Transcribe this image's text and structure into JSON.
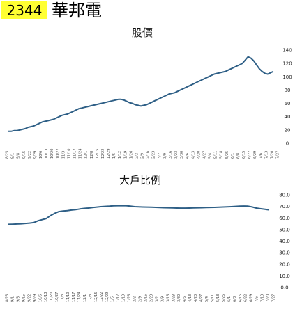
{
  "header": {
    "ticker": "2344",
    "company": "華邦電"
  },
  "chart_data": [
    {
      "type": "line",
      "title": "股價",
      "xlabel": "",
      "ylabel": "",
      "ylim": [
        0,
        140
      ],
      "yticks": [
        "140",
        "120",
        "100",
        "80",
        "60",
        "40",
        "20",
        "0"
      ],
      "yticks_values": [
        140,
        120,
        100,
        80,
        60,
        40,
        20,
        0
      ],
      "y_axis_position": "right",
      "grid": false,
      "color": "#2e5f86",
      "x_labels": [
        "8/25",
        "9/1",
        "9/8",
        "9/15",
        "9/22",
        "9/29",
        "10/6",
        "10/13",
        "10/20",
        "10/27",
        "11/3",
        "11/10",
        "11/17",
        "11/24",
        "12/1",
        "12/8",
        "12/15",
        "12/22",
        "12/29",
        "1/5",
        "1/12",
        "1/19",
        "1/26",
        "2/2",
        "2/9",
        "2/16",
        "2/23",
        "3/2",
        "3/9",
        "3/16",
        "3/23",
        "3/30",
        "4/6",
        "4/13",
        "4/20",
        "4/27",
        "5/4",
        "5/11",
        "5/18",
        "5/25",
        "6/1",
        "6/8",
        "6/15",
        "6/22",
        "6/29",
        "7/6",
        "7/13",
        "7/20",
        "7/27"
      ],
      "values": [
        18,
        18,
        19,
        19,
        20,
        21,
        22,
        24,
        25,
        26,
        28,
        30,
        32,
        33,
        34,
        35,
        36,
        38,
        40,
        42,
        43,
        44,
        46,
        48,
        50,
        52,
        53,
        54,
        55,
        56,
        57,
        58,
        59,
        60,
        61,
        62,
        63,
        64,
        65,
        66,
        66,
        65,
        63,
        61,
        60,
        58,
        57,
        56,
        57,
        58,
        60,
        62,
        64,
        66,
        68,
        70,
        72,
        74,
        75,
        76,
        78,
        80,
        82,
        84,
        86,
        88,
        90,
        92,
        94,
        96,
        98,
        100,
        102,
        104,
        105,
        106,
        107,
        108,
        110,
        112,
        114,
        116,
        118,
        120,
        125,
        130,
        128,
        124,
        118,
        112,
        108,
        105,
        104,
        106,
        108
      ]
    },
    {
      "type": "line",
      "title": "大戶比例",
      "xlabel": "",
      "ylabel": "",
      "ylim": [
        0,
        80
      ],
      "yticks": [
        "80.0",
        "70.0",
        "60.0",
        "50.0",
        "40.0",
        "30.0",
        "20.0",
        "10.0",
        "0.0"
      ],
      "yticks_values": [
        80,
        70,
        60,
        50,
        40,
        30,
        20,
        10,
        0
      ],
      "y_axis_position": "right",
      "grid": false,
      "color": "#2e5f86",
      "x_labels": [
        "8/25",
        "9/1",
        "9/8",
        "9/15",
        "9/22",
        "9/29",
        "10/6",
        "10/13",
        "10/20",
        "10/27",
        "11/3",
        "11/10",
        "11/17",
        "11/24",
        "12/1",
        "12/8",
        "12/15",
        "12/22",
        "12/29",
        "1/5",
        "1/12",
        "1/19",
        "1/26",
        "2/2",
        "2/9",
        "2/16",
        "2/23",
        "3/2",
        "3/9",
        "3/16",
        "3/23",
        "3/30",
        "4/6",
        "4/13",
        "4/20",
        "4/27",
        "5/4",
        "5/11",
        "5/18",
        "5/25",
        "6/1",
        "6/8",
        "6/15",
        "6/22",
        "6/29",
        "7/6",
        "7/13",
        "7/20",
        "7/27"
      ],
      "values": [
        54.5,
        54.6,
        54.8,
        55.0,
        55.3,
        55.6,
        56.0,
        57.5,
        58.5,
        59.5,
        62.0,
        64.0,
        65.5,
        66.0,
        66.3,
        66.8,
        67.2,
        67.8,
        68.3,
        68.6,
        69.0,
        69.4,
        69.8,
        70.0,
        70.2,
        70.5,
        70.6,
        70.7,
        70.6,
        70.2,
        69.8,
        69.6,
        69.5,
        69.4,
        69.3,
        69.2,
        69.0,
        68.9,
        68.8,
        68.7,
        68.6,
        68.5,
        68.5,
        68.6,
        68.7,
        68.8,
        68.9,
        69.0,
        69.1,
        69.2,
        69.3,
        69.5,
        69.6,
        69.8,
        70.0,
        70.2,
        70.3,
        70.2,
        69.5,
        68.5,
        68.0,
        67.5,
        67.0
      ]
    }
  ]
}
